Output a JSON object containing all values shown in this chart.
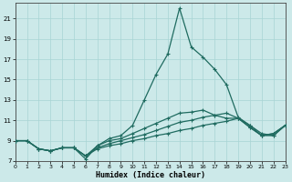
{
  "xlabel": "Humidex (Indice chaleur)",
  "bg_color": "#cce9e9",
  "grid_color": "#a8d4d4",
  "line_color": "#1f6b60",
  "xlim": [
    0,
    23
  ],
  "ylim": [
    7,
    22.5
  ],
  "yticks": [
    7,
    9,
    11,
    13,
    15,
    17,
    19,
    21
  ],
  "xticks": [
    0,
    1,
    2,
    3,
    4,
    5,
    6,
    7,
    8,
    9,
    10,
    11,
    12,
    13,
    14,
    15,
    16,
    17,
    18,
    19,
    20,
    21,
    22,
    23
  ],
  "series": [
    {
      "x": [
        0,
        1,
        2,
        3,
        4,
        5,
        6,
        7,
        8,
        9,
        10,
        11,
        12,
        13,
        14,
        15,
        16,
        17,
        18,
        19,
        20,
        21,
        22,
        23
      ],
      "y": [
        9,
        9,
        8.2,
        8,
        8.3,
        8.3,
        7.5,
        8.2,
        8.5,
        8.7,
        9.0,
        9.2,
        9.5,
        9.7,
        10.0,
        10.2,
        10.5,
        10.7,
        10.9,
        11.2,
        10.3,
        9.5,
        9.7,
        10.5
      ]
    },
    {
      "x": [
        0,
        1,
        2,
        3,
        4,
        5,
        6,
        7,
        8,
        9,
        10,
        11,
        12,
        13,
        14,
        15,
        16,
        17,
        18,
        19,
        20,
        21,
        22,
        23
      ],
      "y": [
        9,
        9,
        8.2,
        8,
        8.3,
        8.3,
        7.5,
        8.3,
        8.7,
        9.0,
        9.3,
        9.6,
        10.0,
        10.4,
        10.8,
        11.0,
        11.3,
        11.5,
        11.7,
        11.2,
        10.3,
        9.5,
        9.7,
        10.5
      ]
    },
    {
      "x": [
        0,
        1,
        2,
        3,
        4,
        5,
        6,
        7,
        8,
        9,
        10,
        11,
        12,
        13,
        14,
        15,
        16,
        17,
        18,
        19,
        20,
        21,
        22,
        23
      ],
      "y": [
        9,
        9,
        8.2,
        8,
        8.3,
        8.3,
        7.5,
        8.5,
        9.0,
        9.2,
        9.7,
        10.2,
        10.7,
        11.2,
        11.7,
        11.8,
        12.0,
        11.5,
        11.2,
        11.2,
        10.5,
        9.5,
        9.5,
        10.5
      ]
    },
    {
      "x": [
        0,
        1,
        2,
        3,
        4,
        5,
        6,
        7,
        8,
        9,
        10,
        11,
        12,
        13,
        14,
        15,
        16,
        17,
        18,
        19,
        20,
        21,
        22,
        23
      ],
      "y": [
        9,
        9,
        8.2,
        8,
        8.3,
        8.3,
        7.2,
        8.5,
        9.2,
        9.5,
        10.5,
        13.0,
        15.5,
        17.5,
        22.0,
        18.2,
        17.2,
        16.0,
        14.5,
        11.3,
        10.5,
        9.7,
        9.5,
        10.5
      ]
    }
  ]
}
